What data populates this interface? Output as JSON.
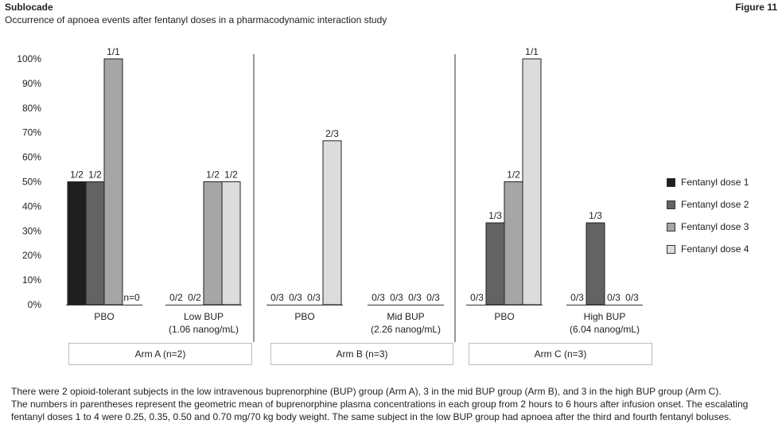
{
  "header": {
    "left_title": "Sublocade",
    "subtitle": "Occurrence of apnoea events after fentanyl doses in a pharmacodynamic interaction study",
    "figure_label": "Figure 11"
  },
  "chart_data": {
    "type": "bar",
    "ylim": [
      0,
      100
    ],
    "yticks": [
      "0%",
      "10%",
      "20%",
      "30%",
      "40%",
      "50%",
      "60%",
      "70%",
      "80%",
      "90%",
      "100%"
    ],
    "series": [
      {
        "name": "Fentanyl dose 1",
        "color": "#1f1f1f"
      },
      {
        "name": "Fentanyl dose 2",
        "color": "#636363"
      },
      {
        "name": "Fentanyl dose 3",
        "color": "#a6a6a6"
      },
      {
        "name": "Fentanyl dose 4",
        "color": "#dcdcdc"
      }
    ],
    "groups": [
      {
        "label_lines": [
          "PBO"
        ],
        "bars": [
          {
            "value": 50,
            "label": "1/2"
          },
          {
            "value": 50,
            "label": "1/2"
          },
          {
            "value": 100,
            "label": "1/1"
          },
          {
            "value": 0,
            "label": "n=0"
          }
        ]
      },
      {
        "label_lines": [
          "Low BUP",
          "(1.06 nanog/mL)"
        ],
        "bars": [
          {
            "value": 0,
            "label": "0/2"
          },
          {
            "value": 0,
            "label": "0/2"
          },
          {
            "value": 50,
            "label": "1/2"
          },
          {
            "value": 50,
            "label": "1/2"
          }
        ]
      },
      {
        "label_lines": [
          "PBO"
        ],
        "bars": [
          {
            "value": 0,
            "label": "0/3"
          },
          {
            "value": 0,
            "label": "0/3"
          },
          {
            "value": 0,
            "label": "0/3"
          },
          {
            "value": 66.7,
            "label": "2/3"
          }
        ]
      },
      {
        "label_lines": [
          "Mid BUP",
          "(2.26 nanog/mL)"
        ],
        "bars": [
          {
            "value": 0,
            "label": "0/3"
          },
          {
            "value": 0,
            "label": "0/3"
          },
          {
            "value": 0,
            "label": "0/3"
          },
          {
            "value": 0,
            "label": "0/3"
          }
        ]
      },
      {
        "label_lines": [
          "PBO"
        ],
        "bars": [
          {
            "value": 0,
            "label": "0/3"
          },
          {
            "value": 33.3,
            "label": "1/3"
          },
          {
            "value": 50,
            "label": "1/2"
          },
          {
            "value": 100,
            "label": "1/1"
          }
        ]
      },
      {
        "label_lines": [
          "High BUP",
          "(6.04 nanog/mL)"
        ],
        "bars": [
          {
            "value": 0,
            "label": "0/3"
          },
          {
            "value": 33.3,
            "label": "1/3"
          },
          {
            "value": 0,
            "label": "0/3"
          },
          {
            "value": 0,
            "label": "0/3"
          }
        ]
      }
    ],
    "arms": [
      "Arm A (n=2)",
      "Arm B (n=3)",
      "Arm C (n=3)"
    ],
    "legend_position": "right",
    "grid": false
  },
  "footnote": [
    "There were 2 opioid-tolerant subjects in the low intravenous buprenorphine (BUP) group (Arm A), 3 in the mid BUP group (Arm B), and 3 in the high BUP group (Arm C).",
    "The numbers in parentheses represent the geometric mean of buprenorphine plasma concentrations in each group from 2 hours to 6 hours after infusion onset. The escalating",
    "fentanyl doses 1 to 4 were 0.25, 0.35, 0.50 and 0.70 mg/70 kg body weight. The same subject in the low BUP group had apnoea after the third and fourth fentanyl boluses."
  ]
}
